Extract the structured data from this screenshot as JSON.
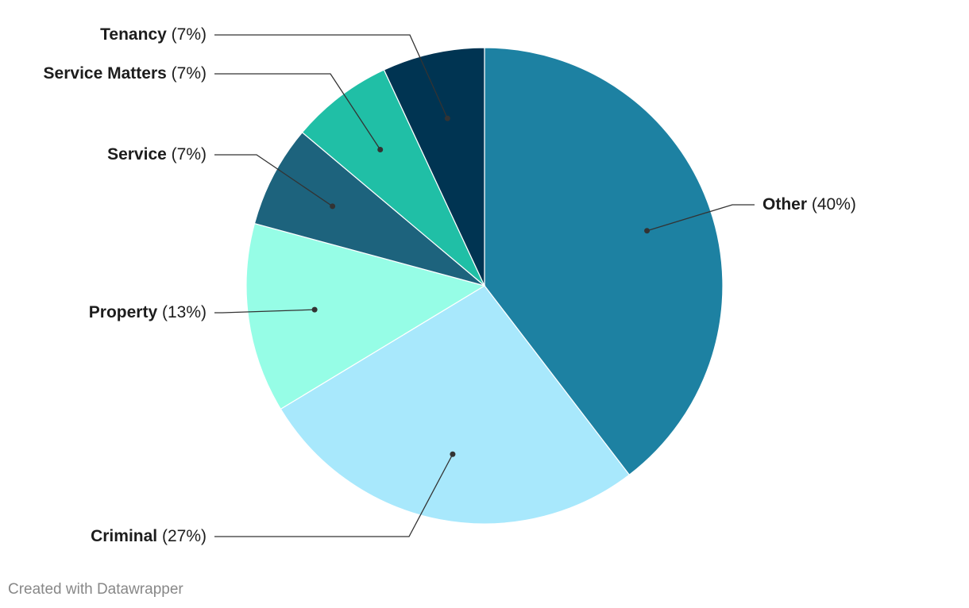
{
  "chart_data": {
    "type": "pie",
    "categories": [
      "Other",
      "Criminal",
      "Property",
      "Service",
      "Service Matters",
      "Tenancy"
    ],
    "values": [
      40,
      27,
      13,
      7,
      7,
      7
    ],
    "value_labels": [
      "(40%)",
      "(27%)",
      "(13%)",
      "(7%)",
      "(7%)",
      "(7%)"
    ],
    "colors": [
      "#1d81a2",
      "#a8e8fc",
      "#96fde6",
      "#1d637d",
      "#20bfa6",
      "#003452"
    ],
    "footer": "Created with Datawrapper"
  }
}
